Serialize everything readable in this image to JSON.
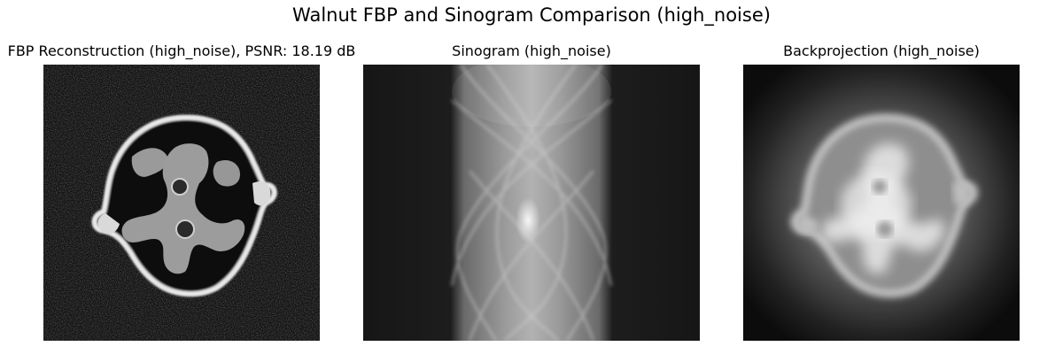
{
  "figure": {
    "suptitle": "Walnut FBP and Sinogram Comparison (high_noise)"
  },
  "panels": [
    {
      "title": "FBP Reconstruction (high_noise), PSNR: 18.19 dB",
      "image": "fbp-reconstruction-image"
    },
    {
      "title": "Sinogram (high_noise)",
      "image": "sinogram-image"
    },
    {
      "title": "Backprojection (high_noise)",
      "image": "backprojection-image"
    }
  ],
  "colors": {
    "background": "#ffffff",
    "image_dark": "#111111",
    "image_light": "#e6e6e6"
  }
}
